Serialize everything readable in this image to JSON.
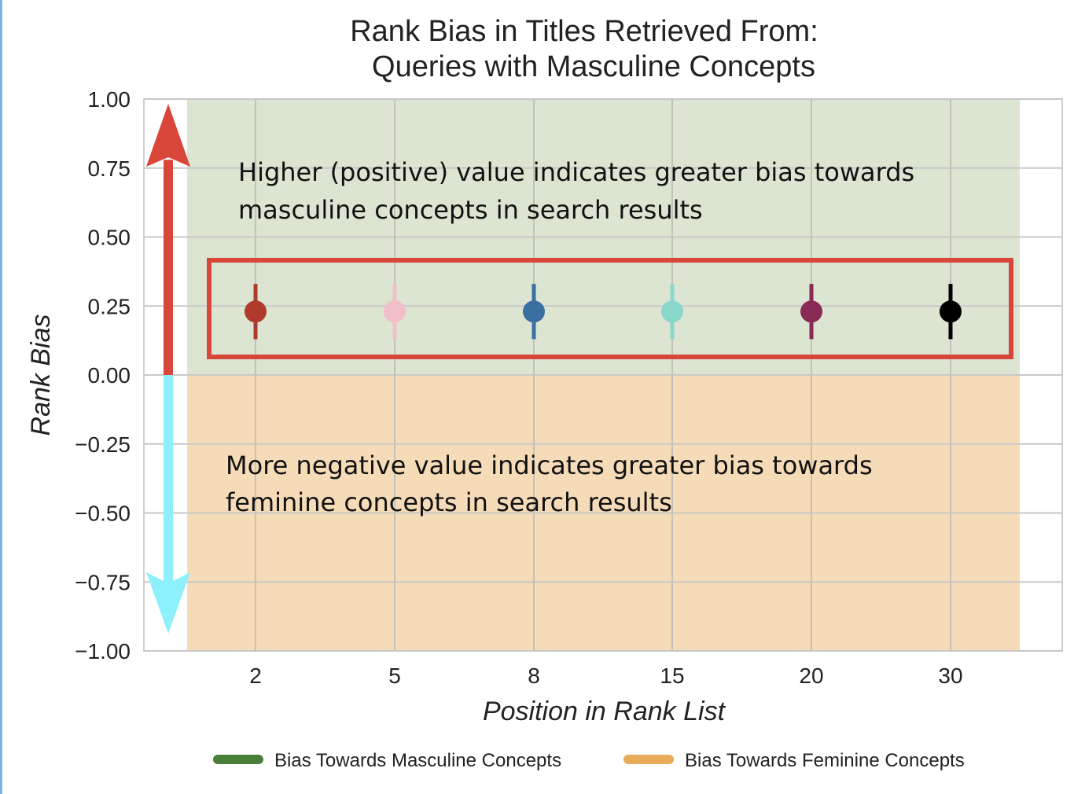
{
  "chart_data": {
    "type": "scatter",
    "title_line1": "Rank Bias in Titles Retrieved From:",
    "title_line2": "Queries with Masculine Concepts",
    "xlabel": "Position in Rank List",
    "ylabel": "Rank Bias",
    "ylim": [
      -1.0,
      1.0
    ],
    "yticks": [
      "1.00",
      "0.75",
      "0.50",
      "0.25",
      "0.00",
      "−0.25",
      "−0.50",
      "−0.75",
      "−1.00"
    ],
    "ytick_values": [
      1.0,
      0.75,
      0.5,
      0.25,
      0.0,
      -0.25,
      -0.5,
      -0.75,
      -1.0
    ],
    "categories": [
      "2",
      "5",
      "8",
      "15",
      "20",
      "30"
    ],
    "points": [
      {
        "x": "2",
        "y": 0.23,
        "err_low": 0.13,
        "err_high": 0.33,
        "color": "#b03a2e"
      },
      {
        "x": "5",
        "y": 0.23,
        "err_low": 0.13,
        "err_high": 0.33,
        "color": "#f2bfc9"
      },
      {
        "x": "8",
        "y": 0.23,
        "err_low": 0.13,
        "err_high": 0.33,
        "color": "#3a6fa1"
      },
      {
        "x": "15",
        "y": 0.23,
        "err_low": 0.13,
        "err_high": 0.33,
        "color": "#8ad8cc"
      },
      {
        "x": "20",
        "y": 0.23,
        "err_low": 0.13,
        "err_high": 0.33,
        "color": "#8a2a57"
      },
      {
        "x": "30",
        "y": 0.23,
        "err_low": 0.13,
        "err_high": 0.33,
        "color": "#000000"
      }
    ],
    "regions": {
      "positive_color": "#dce4d2",
      "negative_color": "#f5dbb7"
    },
    "annotations": {
      "positive_line1": "Higher (positive) value indicates greater bias towards",
      "positive_line2": "masculine concepts in search results",
      "negative_line1": "More negative value indicates greater bias towards",
      "negative_line2": "feminine concepts in search results"
    },
    "arrows": {
      "up_color": "#d9463a",
      "down_color": "#8ef0fa"
    },
    "highlight_box_color": "#d9463a",
    "grid": true,
    "legend_position": "bottom",
    "legend": [
      {
        "label": "Bias Towards Masculine Concepts",
        "color": "#4a7f3a"
      },
      {
        "label": "Bias Towards Feminine Concepts",
        "color": "#e8ac5a"
      }
    ]
  }
}
